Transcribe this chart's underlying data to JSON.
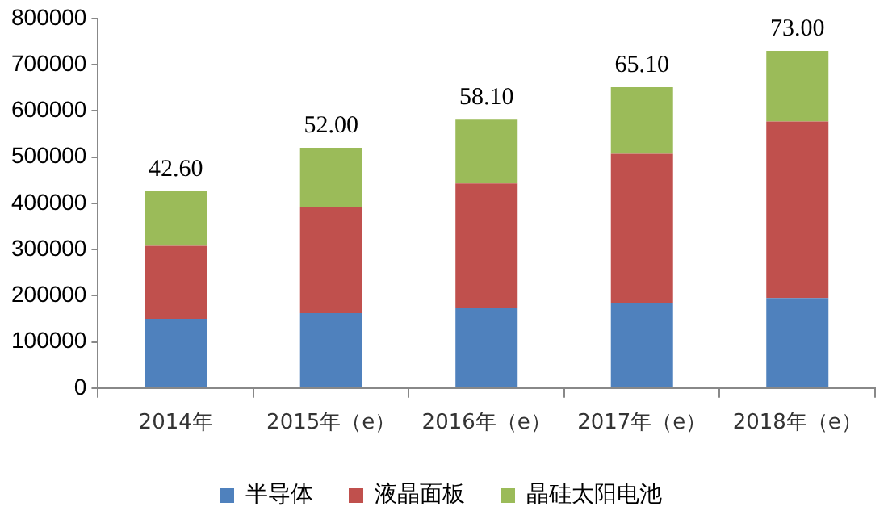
{
  "chart_data": {
    "type": "bar",
    "stacked": true,
    "categories": [
      "2014年",
      "2015年（e）",
      "2016年（e）",
      "2017年（e）",
      "2018年（e）"
    ],
    "series": [
      {
        "name": "半导体",
        "color": "#4f81bd",
        "values": [
          150000,
          162000,
          174000,
          185000,
          195000
        ]
      },
      {
        "name": "液晶面板",
        "color": "#c0504d",
        "values": [
          158000,
          229000,
          269000,
          322000,
          382000
        ]
      },
      {
        "name": "晶硅太阳电池",
        "color": "#9bbb59",
        "values": [
          118000,
          129000,
          138000,
          144000,
          153000
        ]
      }
    ],
    "annotations": [
      {
        "text": "42.60",
        "x": "2014年",
        "y": 426000
      },
      {
        "text": "52.00",
        "x": "2015年（e）",
        "y": 520000
      },
      {
        "text": "58.10",
        "x": "2016年（e）",
        "y": 581000
      },
      {
        "text": "65.10",
        "x": "2017年（e）",
        "y": 651000
      },
      {
        "text": "73.00",
        "x": "2018年（e）",
        "y": 730000
      }
    ],
    "ylim": [
      0,
      800000
    ],
    "yticks": [
      0,
      100000,
      200000,
      300000,
      400000,
      500000,
      600000,
      700000,
      800000
    ],
    "grid": false,
    "legend": "bottom"
  }
}
